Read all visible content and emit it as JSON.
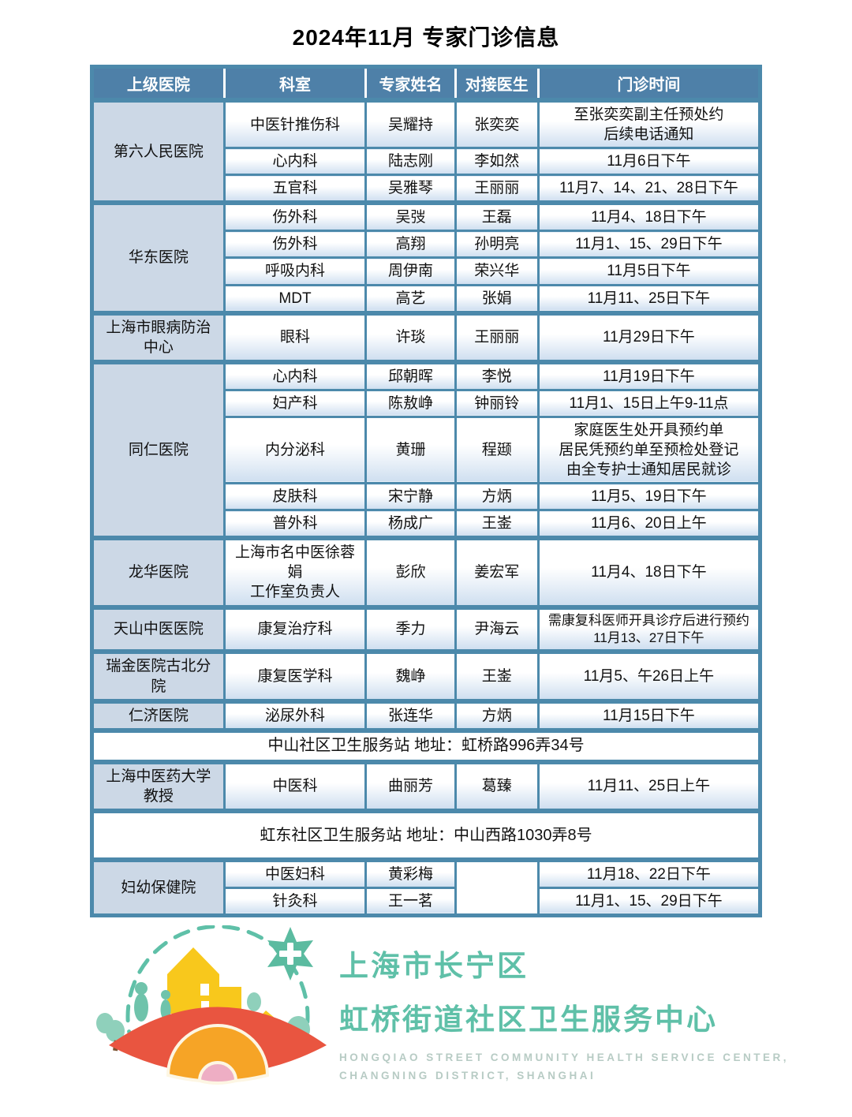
{
  "title": "2024年11月 专家门诊信息",
  "table": {
    "headers": [
      "上级医院",
      "科室",
      "专家姓名",
      "对接医生",
      "门诊时间"
    ],
    "rows": [
      {
        "g": true,
        "cells": [
          {
            "t": "第六人民医院",
            "rs": 3,
            "cls": "hosp"
          },
          {
            "t": "中医针推伤科"
          },
          {
            "t": "吴耀持"
          },
          {
            "t": "张奕奕"
          },
          {
            "t": "至张奕奕副主任预处约\n后续电话通知"
          }
        ]
      },
      {
        "cells": [
          {
            "t": "心内科"
          },
          {
            "t": "陆志刚"
          },
          {
            "t": "李如然"
          },
          {
            "t": "11月6日下午"
          }
        ]
      },
      {
        "cells": [
          {
            "t": "五官科"
          },
          {
            "t": "吴雅琴"
          },
          {
            "t": "王丽丽"
          },
          {
            "t": "11月7、14、21、28日下午"
          }
        ]
      },
      {
        "g": true,
        "cells": [
          {
            "t": "华东医院",
            "rs": 4,
            "cls": "hosp"
          },
          {
            "t": "伤外科"
          },
          {
            "t": "吴弢"
          },
          {
            "t": "王磊"
          },
          {
            "t": "11月4、18日下午"
          }
        ]
      },
      {
        "cells": [
          {
            "t": "伤外科"
          },
          {
            "t": "高翔"
          },
          {
            "t": "孙明亮"
          },
          {
            "t": "11月1、15、29日下午"
          }
        ]
      },
      {
        "cells": [
          {
            "t": "呼吸内科"
          },
          {
            "t": "周伊南"
          },
          {
            "t": "荣兴华"
          },
          {
            "t": "11月5日下午"
          }
        ]
      },
      {
        "cells": [
          {
            "t": "MDT"
          },
          {
            "t": "高艺"
          },
          {
            "t": "张娟"
          },
          {
            "t": "11月11、25日下午"
          }
        ]
      },
      {
        "g": true,
        "cells": [
          {
            "t": "上海市眼病防治\n中心",
            "cls": "hosp"
          },
          {
            "t": "眼科"
          },
          {
            "t": "许琰"
          },
          {
            "t": "王丽丽"
          },
          {
            "t": "11月29日下午"
          }
        ]
      },
      {
        "g": true,
        "cells": [
          {
            "t": "同仁医院",
            "rs": 5,
            "cls": "hosp"
          },
          {
            "t": "心内科"
          },
          {
            "t": "邱朝晖"
          },
          {
            "t": "李悦"
          },
          {
            "t": "11月19日下午"
          }
        ]
      },
      {
        "cells": [
          {
            "t": "妇产科"
          },
          {
            "t": "陈敖峥"
          },
          {
            "t": "钟丽铃"
          },
          {
            "t": "11月1、15日上午9-11点"
          }
        ]
      },
      {
        "cells": [
          {
            "t": "内分泌科"
          },
          {
            "t": "黄珊"
          },
          {
            "t": "程颋"
          },
          {
            "t": "家庭医生处开具预约单\n居民凭预约单至预检处登记\n由全专护士通知居民就诊"
          }
        ]
      },
      {
        "cells": [
          {
            "t": "皮肤科"
          },
          {
            "t": "宋宁静"
          },
          {
            "t": "方炳"
          },
          {
            "t": "11月5、19日下午"
          }
        ]
      },
      {
        "cells": [
          {
            "t": "普外科"
          },
          {
            "t": "杨成广"
          },
          {
            "t": "王崟"
          },
          {
            "t": "11月6、20日上午"
          }
        ]
      },
      {
        "g": true,
        "cells": [
          {
            "t": "龙华医院",
            "cls": "hosp"
          },
          {
            "t": "上海市名中医徐蓉娟\n工作室负责人"
          },
          {
            "t": "彭欣"
          },
          {
            "t": "姜宏军"
          },
          {
            "t": "11月4、18日下午"
          }
        ]
      },
      {
        "g": true,
        "cells": [
          {
            "t": "天山中医医院",
            "cls": "hosp"
          },
          {
            "t": "康复治疗科"
          },
          {
            "t": "季力"
          },
          {
            "t": "尹海云"
          },
          {
            "t": "需康复科医师开具诊疗后进行预约\n11月13、27日下午",
            "cls": "small"
          }
        ]
      },
      {
        "g": true,
        "cells": [
          {
            "t": "瑞金医院古北分院",
            "cls": "hosp"
          },
          {
            "t": "康复医学科"
          },
          {
            "t": "魏峥"
          },
          {
            "t": "王崟"
          },
          {
            "t": "11月5、午26日上午"
          }
        ]
      },
      {
        "g": true,
        "cells": [
          {
            "t": "仁济医院",
            "cls": "hosp"
          },
          {
            "t": "泌尿外科"
          },
          {
            "t": "张连华"
          },
          {
            "t": "方炳"
          },
          {
            "t": "11月15日下午"
          }
        ]
      },
      {
        "g": true,
        "cells": [
          {
            "t": "中山社区卫生服务站 地址：虹桥路996弄34号",
            "cs": 5,
            "cls": "addr"
          }
        ]
      },
      {
        "g": true,
        "cells": [
          {
            "t": "上海中医药大学\n教授",
            "cls": "hosp"
          },
          {
            "t": "中医科"
          },
          {
            "t": "曲丽芳"
          },
          {
            "t": "葛臻"
          },
          {
            "t": "11月11、25日上午"
          }
        ]
      },
      {
        "g": true,
        "cells": [
          {
            "t": "虹东社区卫生服务站 地址：中山西路1030弄8号",
            "cs": 5,
            "cls": "addr addr-tall"
          }
        ]
      },
      {
        "g": true,
        "cells": [
          {
            "t": "妇幼保健院",
            "rs": 2,
            "cls": "hosp"
          },
          {
            "t": "中医妇科"
          },
          {
            "t": "黄彩梅"
          },
          {
            "t": "",
            "rs": 2,
            "cls": "blank"
          },
          {
            "t": "11月18、22日下午"
          }
        ]
      },
      {
        "cells": [
          {
            "t": "针灸科"
          },
          {
            "t": "王一茗"
          },
          {
            "t": "11月1、15、29日下午"
          }
        ]
      }
    ]
  },
  "logo": {
    "org_line1": "上海市长宁区",
    "org_line2": "虹桥街道社区卫生服务中心",
    "english_line1": "HONGQIAO STREET COMMUNITY HEALTH SERVICE CENTER,",
    "english_line2": "CHANGNING DISTRICT, SHANGHAI"
  },
  "colors": {
    "header_bg": "#4e80a8",
    "table_border": "#4c89ab",
    "hospital_cell_bg": "#ccd8e6",
    "cell_gradient_bottom": "#cfdff0",
    "brand_teal": "#5fc0a8",
    "arch_red": "#e95540",
    "arch_orange": "#f6a426",
    "arch_pink": "#eeaec4",
    "house_yellow": "#f8c81c"
  }
}
